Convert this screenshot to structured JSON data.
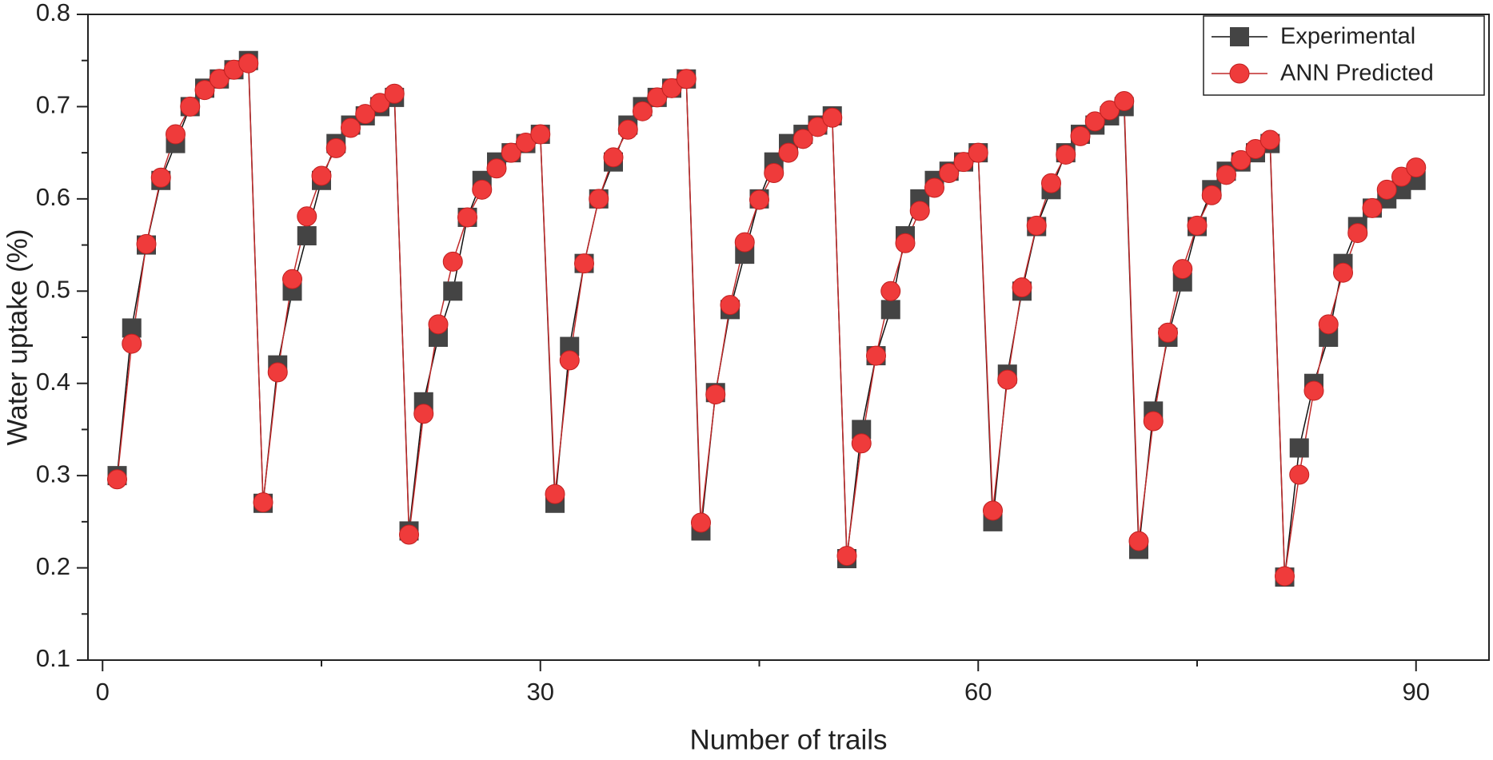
{
  "chart_data": {
    "type": "line",
    "x_label": "Number of trails",
    "y_label": "Water uptake (%)",
    "x": [
      1,
      2,
      3,
      4,
      5,
      6,
      7,
      8,
      9,
      10,
      11,
      12,
      13,
      14,
      15,
      16,
      17,
      18,
      19,
      20,
      21,
      22,
      23,
      24,
      25,
      26,
      27,
      28,
      29,
      30,
      31,
      32,
      33,
      34,
      35,
      36,
      37,
      38,
      39,
      40,
      41,
      42,
      43,
      44,
      45,
      46,
      47,
      48,
      49,
      50,
      51,
      52,
      53,
      54,
      55,
      56,
      57,
      58,
      59,
      60,
      61,
      62,
      63,
      64,
      65,
      66,
      67,
      68,
      69,
      70,
      71,
      72,
      73,
      74,
      75,
      76,
      77,
      78,
      79,
      80,
      81,
      82,
      83,
      84,
      85,
      86,
      87,
      88,
      89,
      90
    ],
    "series": [
      {
        "name": "Experimental",
        "color": "#444444",
        "marker": "square",
        "values": [
          0.3,
          0.46,
          0.55,
          0.62,
          0.66,
          0.7,
          0.72,
          0.73,
          0.74,
          0.75,
          0.27,
          0.42,
          0.5,
          0.56,
          0.62,
          0.66,
          0.68,
          0.69,
          0.7,
          0.71,
          0.24,
          0.38,
          0.45,
          0.5,
          0.58,
          0.62,
          0.64,
          0.65,
          0.66,
          0.67,
          0.27,
          0.44,
          0.53,
          0.6,
          0.64,
          0.68,
          0.7,
          0.71,
          0.72,
          0.73,
          0.24,
          0.39,
          0.48,
          0.54,
          0.6,
          0.64,
          0.66,
          0.67,
          0.68,
          0.69,
          0.21,
          0.35,
          0.43,
          0.48,
          0.56,
          0.6,
          0.62,
          0.63,
          0.64,
          0.65,
          0.25,
          0.41,
          0.5,
          0.57,
          0.61,
          0.65,
          0.67,
          0.68,
          0.69,
          0.7,
          0.22,
          0.37,
          0.45,
          0.51,
          0.57,
          0.61,
          0.63,
          0.64,
          0.65,
          0.66,
          0.19,
          0.33,
          0.4,
          0.45,
          0.53,
          0.57,
          0.59,
          0.6,
          0.61,
          0.62
        ]
      },
      {
        "name": "ANN Predicted",
        "color": "#ef3b3b",
        "marker": "circle",
        "values": [
          0.296,
          0.443,
          0.551,
          0.623,
          0.67,
          0.7,
          0.718,
          0.73,
          0.74,
          0.747,
          0.271,
          0.412,
          0.513,
          0.581,
          0.625,
          0.655,
          0.677,
          0.692,
          0.704,
          0.714,
          0.236,
          0.367,
          0.464,
          0.532,
          0.58,
          0.61,
          0.633,
          0.65,
          0.661,
          0.67,
          0.28,
          0.425,
          0.53,
          0.6,
          0.645,
          0.675,
          0.695,
          0.71,
          0.72,
          0.73,
          0.249,
          0.388,
          0.485,
          0.553,
          0.599,
          0.628,
          0.65,
          0.665,
          0.678,
          0.688,
          0.213,
          0.335,
          0.43,
          0.5,
          0.552,
          0.587,
          0.612,
          0.628,
          0.64,
          0.65,
          0.262,
          0.404,
          0.504,
          0.571,
          0.617,
          0.648,
          0.668,
          0.684,
          0.696,
          0.706,
          0.229,
          0.359,
          0.455,
          0.524,
          0.571,
          0.604,
          0.626,
          0.642,
          0.654,
          0.664,
          0.191,
          0.301,
          0.392,
          0.464,
          0.52,
          0.563,
          0.59,
          0.61,
          0.624,
          0.634
        ]
      }
    ],
    "xlim": [
      -1,
      95
    ],
    "xticks": [
      0,
      30,
      60,
      90
    ],
    "xminorticks": [
      15,
      45,
      75
    ],
    "ylim": [
      0.1,
      0.8
    ],
    "yticks": [
      0.1,
      0.2,
      0.3,
      0.4,
      0.5,
      0.6,
      0.7,
      0.8
    ],
    "yminorticks": [
      0.15,
      0.25,
      0.35,
      0.45,
      0.55,
      0.65,
      0.75
    ],
    "grid": false,
    "legend": "top-right"
  }
}
